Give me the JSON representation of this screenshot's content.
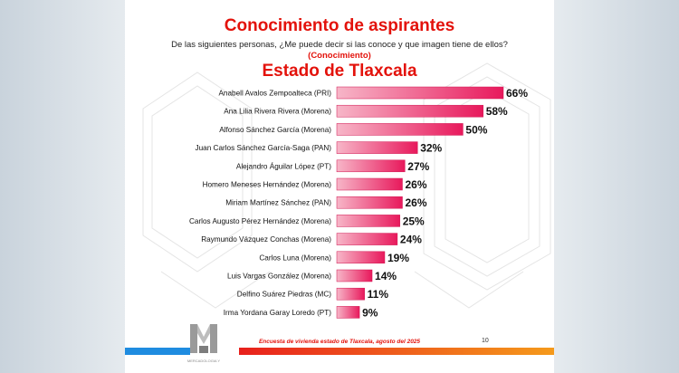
{
  "title": "Conocimiento de aspirantes",
  "question": "De las siguientes personas, ¿Me puede decir si las conoce y que imagen tiene de ellos?",
  "subtitle": "(Conocimiento)",
  "state": "Estado de Tlaxcala",
  "footer": "Encuesta de vivienda estado de Tlaxcala, agosto del 2025",
  "page_number": "10",
  "logo_text": "MERCADOLOGIA Y",
  "colors": {
    "title": "#e3120b",
    "bar_light": "#f7b6c8",
    "bar_dark": "#e8195c",
    "blue": "#1f8ce0",
    "orange": "#f59a1b"
  },
  "chart_data": {
    "type": "bar",
    "orientation": "horizontal",
    "title": "Estado de Tlaxcala",
    "categories": [
      "Anabell Avalos Zempoalteca (PRI)",
      "Ana Lilia Rivera Rivera (Morena)",
      "Alfonso Sánchez García (Morena)",
      "Juan Carlos Sánchez García-Saga (PAN)",
      "Alejandro Águilar López (PT)",
      "Homero Meneses Hernández (Morena)",
      "Miriam Martínez Sánchez (PAN)",
      "Carlos Augusto Pérez Hernández (Morena)",
      "Raymundo Vázquez Conchas (Morena)",
      "Carlos Luna (Morena)",
      "Luis Vargas González (Morena)",
      "Delfino Suárez Piedras (MC)",
      "Irma Yordana Garay Loredo (PT)"
    ],
    "values": [
      66,
      58,
      50,
      32,
      27,
      26,
      26,
      25,
      24,
      19,
      14,
      11,
      9
    ],
    "labels": [
      "66%",
      "58%",
      "50%",
      "32%",
      "27%",
      "26%",
      "26%",
      "25%",
      "24%",
      "19%",
      "14%",
      "11%",
      "9%"
    ],
    "xlim": [
      0,
      66
    ]
  }
}
